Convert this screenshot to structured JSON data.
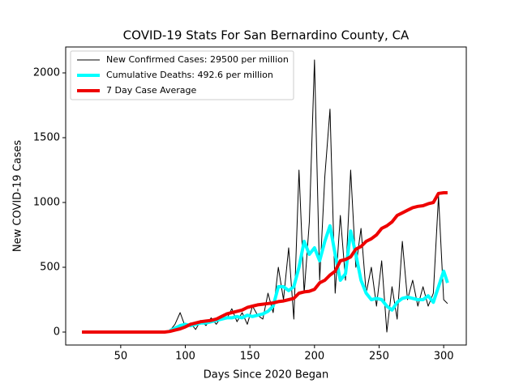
{
  "chart_data": {
    "type": "line",
    "title": "COVID-19 Stats For San Bernardino County, CA",
    "xlabel": "Days Since 2020 Began",
    "ylabel": "New COVID-19 Cases",
    "x": [
      20,
      24,
      28,
      32,
      36,
      40,
      44,
      48,
      52,
      56,
      60,
      64,
      68,
      72,
      76,
      80,
      84,
      88,
      92,
      96,
      100,
      104,
      108,
      112,
      116,
      120,
      124,
      128,
      132,
      136,
      140,
      144,
      148,
      152,
      156,
      160,
      164,
      168,
      172,
      176,
      180,
      184,
      188,
      192,
      196,
      200,
      204,
      208,
      212,
      216,
      220,
      224,
      228,
      232,
      236,
      240,
      244,
      248,
      252,
      256,
      260,
      264,
      268,
      272,
      276,
      280,
      284,
      288,
      292,
      296,
      300,
      303
    ],
    "series": [
      {
        "name": "New Confirmed Cases: 29500 per million",
        "color": "#000000",
        "width": 1,
        "values": [
          0,
          0,
          0,
          0,
          0,
          0,
          0,
          0,
          0,
          0,
          0,
          0,
          0,
          0,
          0,
          0,
          0,
          10,
          60,
          150,
          40,
          70,
          20,
          90,
          50,
          110,
          60,
          120,
          100,
          180,
          80,
          150,
          60,
          200,
          130,
          100,
          300,
          150,
          500,
          250,
          650,
          100,
          1250,
          300,
          850,
          2100,
          400,
          1200,
          1720,
          300,
          900,
          400,
          1250,
          500,
          800,
          300,
          500,
          200,
          550,
          0,
          350,
          100,
          700,
          250,
          400,
          200,
          350,
          200,
          300,
          1050,
          250,
          220
        ]
      },
      {
        "name": "Cumulative Deaths: 492.6 per million",
        "color": "#00ffff",
        "width": 4,
        "values": [
          null,
          null,
          null,
          null,
          null,
          null,
          null,
          null,
          null,
          null,
          null,
          null,
          null,
          null,
          null,
          null,
          null,
          10,
          30,
          50,
          60,
          50,
          60,
          70,
          70,
          80,
          90,
          100,
          110,
          110,
          120,
          110,
          130,
          120,
          130,
          140,
          160,
          200,
          350,
          350,
          320,
          350,
          500,
          700,
          600,
          650,
          550,
          700,
          820,
          600,
          400,
          450,
          780,
          600,
          400,
          300,
          250,
          260,
          250,
          200,
          170,
          230,
          260,
          270,
          260,
          250,
          250,
          280,
          230,
          350,
          470,
          380
        ]
      },
      {
        "name": "7 Day Case Average",
        "color": "#ee0000",
        "width": 4,
        "values": [
          0,
          0,
          0,
          0,
          0,
          0,
          0,
          0,
          0,
          0,
          0,
          0,
          0,
          0,
          0,
          0,
          0,
          5,
          15,
          25,
          40,
          60,
          70,
          80,
          85,
          90,
          100,
          120,
          140,
          150,
          160,
          170,
          190,
          200,
          210,
          215,
          220,
          225,
          235,
          240,
          250,
          260,
          300,
          310,
          315,
          330,
          380,
          400,
          440,
          470,
          550,
          560,
          580,
          640,
          660,
          700,
          720,
          750,
          800,
          820,
          850,
          900,
          920,
          940,
          960,
          970,
          975,
          990,
          1000,
          1070,
          1075,
          1075
        ]
      }
    ],
    "xlim": [
      7.4,
      317.5
    ],
    "ylim": [
      -100,
      2200
    ],
    "xticks": [
      50,
      100,
      150,
      200,
      250,
      300
    ],
    "yticks": [
      0,
      500,
      1000,
      1500,
      2000
    ],
    "grid": false,
    "legend": "upper left"
  }
}
